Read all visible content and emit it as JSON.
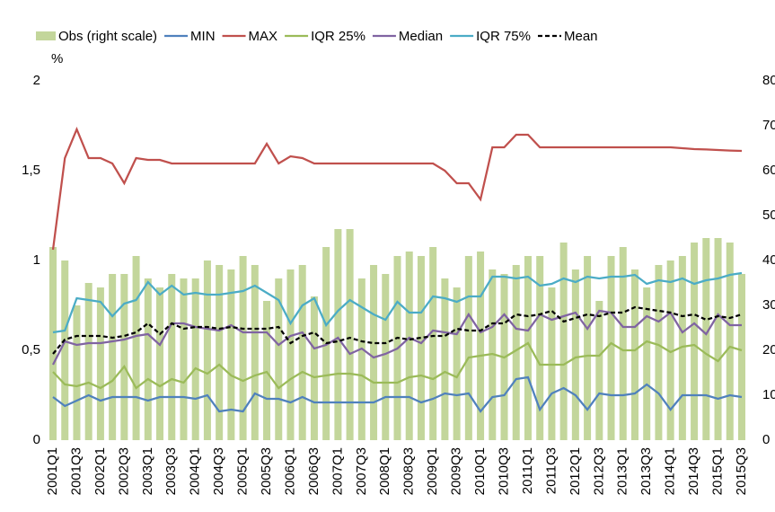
{
  "chart_data": {
    "type": "combo",
    "ylabel": "%",
    "categories": [
      "2001Q1",
      null,
      "2001Q3",
      null,
      "2002Q1",
      null,
      "2002Q3",
      null,
      "2003Q1",
      null,
      "2003Q3",
      null,
      "2004Q1",
      null,
      "2004Q3",
      null,
      "2005Q1",
      null,
      "2005Q3",
      null,
      "2006Q1",
      null,
      "2006Q3",
      null,
      "2007Q1",
      null,
      "2007Q3",
      null,
      "2008Q1",
      null,
      "2008Q3",
      null,
      "2009Q1",
      null,
      "2009Q3",
      null,
      "2010Q1",
      null,
      "2010Q3",
      null,
      "2011Q1",
      null,
      "2011Q3",
      null,
      "2012Q1",
      null,
      "2012Q3",
      null,
      "2013Q1",
      null,
      "2013Q3",
      null,
      "2014Q1",
      null,
      "2014Q3",
      null,
      "2015Q1",
      null,
      "2015Q3"
    ],
    "ylim": [
      0,
      2
    ],
    "yticks": [
      0,
      {
        "value": 0.5,
        "label": "0,5"
      },
      1,
      {
        "value": 1.5,
        "label": "1,5"
      },
      2
    ],
    "y2lim": [
      0,
      80
    ],
    "y2ticks": [
      0,
      10,
      20,
      30,
      40,
      50,
      60,
      70,
      80
    ],
    "series": [
      {
        "name": "Obs (right scale)",
        "kind": "bar",
        "axis": "y2",
        "color": "#c3d69b",
        "values": [
          43,
          40,
          30,
          35,
          34,
          37,
          37,
          41,
          36,
          34,
          37,
          36,
          36,
          40,
          39,
          38,
          41,
          39,
          31,
          36,
          38,
          39,
          32,
          43,
          47,
          47,
          36,
          39,
          37,
          41,
          42,
          41,
          43,
          36,
          34,
          41,
          42,
          38,
          37,
          39,
          41,
          41,
          34,
          44,
          38,
          41,
          31,
          41,
          43,
          38,
          34,
          39,
          40,
          41,
          44,
          45,
          45,
          44,
          37
        ]
      },
      {
        "name": "MIN",
        "kind": "line",
        "color": "#4f81bd",
        "values": [
          0.24,
          0.19,
          0.22,
          0.25,
          0.22,
          0.24,
          0.24,
          0.24,
          0.22,
          0.24,
          0.24,
          0.24,
          0.23,
          0.25,
          0.16,
          0.17,
          0.16,
          0.26,
          0.23,
          0.23,
          0.21,
          0.24,
          0.21,
          0.21,
          0.21,
          0.21,
          0.21,
          0.21,
          0.24,
          0.24,
          0.24,
          0.21,
          0.23,
          0.26,
          0.25,
          0.26,
          0.16,
          0.24,
          0.25,
          0.34,
          0.35,
          0.17,
          0.26,
          0.29,
          0.25,
          0.17,
          0.26,
          0.25,
          0.25,
          0.26,
          0.31,
          0.26,
          0.17,
          0.25,
          0.25,
          0.25,
          0.23,
          0.25,
          0.24
        ]
      },
      {
        "name": "MAX",
        "kind": "line",
        "color": "#c0504d",
        "values": [
          1.06,
          1.57,
          1.73,
          1.57,
          1.57,
          1.54,
          1.43,
          1.57,
          1.56,
          1.56,
          1.54,
          1.54,
          1.54,
          1.54,
          1.54,
          1.54,
          1.54,
          1.54,
          1.65,
          1.54,
          1.58,
          1.57,
          1.54,
          1.54,
          1.54,
          1.54,
          1.54,
          1.54,
          1.54,
          1.54,
          1.54,
          1.54,
          1.54,
          1.5,
          1.43,
          1.43,
          1.34,
          1.63,
          1.63,
          1.7,
          1.7,
          1.63,
          1.63,
          1.63,
          1.63,
          1.63,
          1.63,
          1.63,
          1.63,
          1.63,
          1.63,
          1.63,
          1.63,
          1.625,
          1.62,
          1.618,
          1.615,
          1.612,
          1.61
        ]
      },
      {
        "name": "IQR 25%",
        "kind": "line",
        "color": "#9bbb59",
        "values": [
          0.38,
          0.31,
          0.3,
          0.32,
          0.29,
          0.33,
          0.41,
          0.29,
          0.34,
          0.3,
          0.34,
          0.32,
          0.4,
          0.37,
          0.42,
          0.36,
          0.33,
          0.36,
          0.38,
          0.29,
          0.34,
          0.38,
          0.35,
          0.36,
          0.37,
          0.37,
          0.36,
          0.32,
          0.32,
          0.32,
          0.35,
          0.36,
          0.34,
          0.38,
          0.35,
          0.46,
          0.47,
          0.48,
          0.46,
          0.5,
          0.54,
          0.42,
          0.42,
          0.42,
          0.46,
          0.47,
          0.47,
          0.54,
          0.5,
          0.5,
          0.55,
          0.53,
          0.49,
          0.52,
          0.53,
          0.48,
          0.44,
          0.52,
          0.5
        ]
      },
      {
        "name": "Median",
        "kind": "line",
        "color": "#8064a2",
        "values": [
          0.42,
          0.55,
          0.53,
          0.54,
          0.54,
          0.55,
          0.56,
          0.58,
          0.59,
          0.53,
          0.65,
          0.65,
          0.63,
          0.62,
          0.61,
          0.64,
          0.6,
          0.6,
          0.6,
          0.53,
          0.58,
          0.6,
          0.51,
          0.53,
          0.57,
          0.48,
          0.51,
          0.46,
          0.48,
          0.51,
          0.57,
          0.54,
          0.61,
          0.6,
          0.59,
          0.7,
          0.6,
          0.63,
          0.7,
          0.62,
          0.61,
          0.7,
          0.67,
          0.69,
          0.71,
          0.62,
          0.72,
          0.71,
          0.63,
          0.63,
          0.69,
          0.66,
          0.71,
          0.6,
          0.65,
          0.59,
          0.7,
          0.64,
          0.64
        ]
      },
      {
        "name": "IQR 75%",
        "kind": "line",
        "color": "#4bacc6",
        "values": [
          0.6,
          0.61,
          0.79,
          0.78,
          0.77,
          0.69,
          0.76,
          0.78,
          0.88,
          0.81,
          0.86,
          0.81,
          0.82,
          0.81,
          0.81,
          0.82,
          0.83,
          0.86,
          0.82,
          0.78,
          0.65,
          0.75,
          0.79,
          0.64,
          0.72,
          0.78,
          0.74,
          0.7,
          0.67,
          0.77,
          0.71,
          0.71,
          0.8,
          0.79,
          0.77,
          0.8,
          0.8,
          0.91,
          0.91,
          0.9,
          0.91,
          0.86,
          0.87,
          0.9,
          0.88,
          0.91,
          0.9,
          0.91,
          0.91,
          0.92,
          0.87,
          0.89,
          0.88,
          0.9,
          0.87,
          0.89,
          0.9,
          0.92,
          0.93
        ]
      },
      {
        "name": "Mean",
        "kind": "line",
        "color": "#000000",
        "dashed": true,
        "values": [
          0.48,
          0.56,
          0.58,
          0.58,
          0.58,
          0.57,
          0.58,
          0.6,
          0.65,
          0.59,
          0.65,
          0.62,
          0.63,
          0.63,
          0.62,
          0.63,
          0.62,
          0.62,
          0.62,
          0.63,
          0.54,
          0.58,
          0.6,
          0.54,
          0.55,
          0.57,
          0.55,
          0.54,
          0.54,
          0.57,
          0.56,
          0.57,
          0.58,
          0.58,
          0.62,
          0.61,
          0.61,
          0.65,
          0.65,
          0.7,
          0.69,
          0.7,
          0.72,
          0.66,
          0.68,
          0.7,
          0.69,
          0.71,
          0.71,
          0.74,
          0.73,
          0.72,
          0.71,
          0.69,
          0.7,
          0.67,
          0.69,
          0.68,
          0.7
        ]
      }
    ]
  }
}
